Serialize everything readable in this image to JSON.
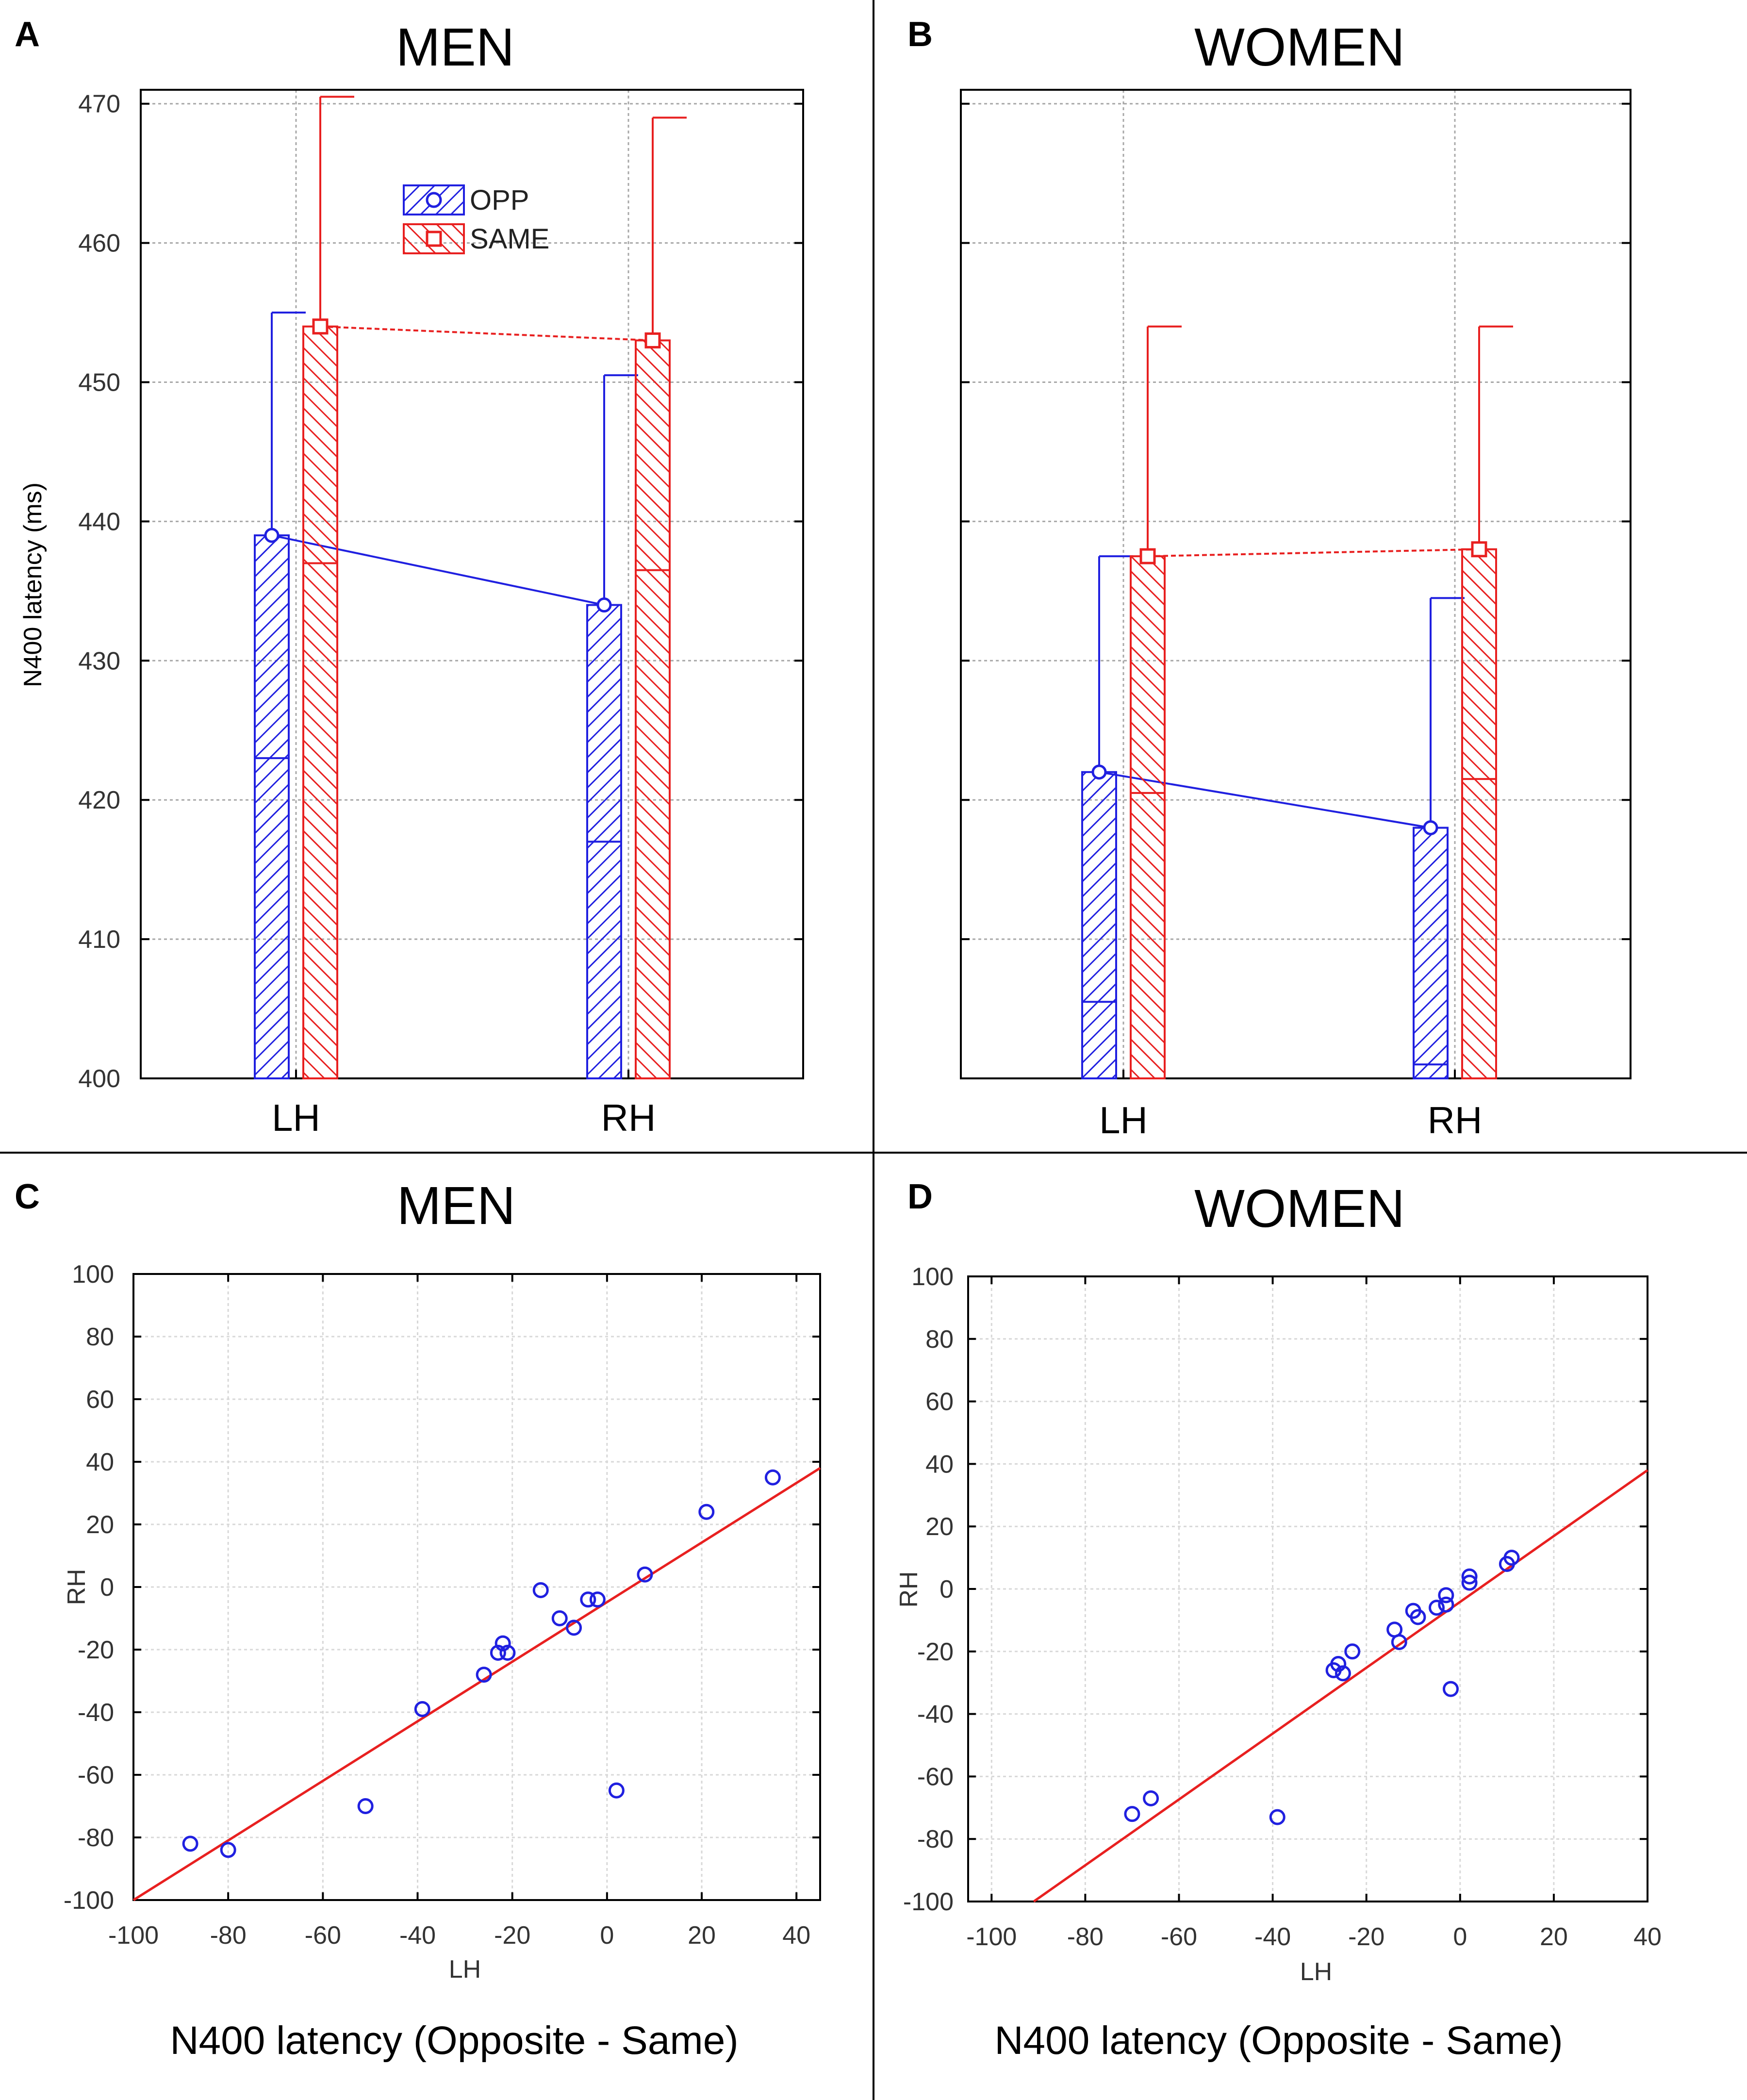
{
  "colors": {
    "opp": "#2020e0",
    "same": "#e82020",
    "fit_line": "#e82020",
    "axis": "#000000",
    "grid": "#a8a8a8",
    "text": "#000000",
    "tick_text": "#333333"
  },
  "chart_data": [
    {
      "panel": "A",
      "type": "bar",
      "title": "MEN",
      "xlabel": "",
      "ylabel": "N400 latency (ms)",
      "ylim": [
        400,
        470
      ],
      "yticks": [
        400,
        410,
        420,
        430,
        440,
        450,
        460,
        470
      ],
      "categories": [
        "LH",
        "RH"
      ],
      "grid": true,
      "legend_position": "top-center",
      "series": [
        {
          "name": "OPP",
          "values": [
            439,
            434
          ],
          "lower": [
            423,
            417
          ],
          "upper": [
            455,
            450.5
          ]
        },
        {
          "name": "SAME",
          "values": [
            454,
            453
          ],
          "lower": [
            437,
            436.5
          ],
          "upper": [
            470.5,
            469
          ]
        }
      ]
    },
    {
      "panel": "B",
      "type": "bar",
      "title": "WOMEN",
      "xlabel": "",
      "ylabel": "",
      "ylim": [
        400,
        470
      ],
      "yticks": [
        400,
        410,
        420,
        430,
        440,
        450,
        460,
        470
      ],
      "categories": [
        "LH",
        "RH"
      ],
      "grid": true,
      "series": [
        {
          "name": "OPP",
          "values": [
            422,
            418
          ],
          "lower": [
            405.5,
            401
          ],
          "upper": [
            437.5,
            434.5
          ]
        },
        {
          "name": "SAME",
          "values": [
            437.5,
            438
          ],
          "lower": [
            420.5,
            421.5
          ],
          "upper": [
            454,
            454
          ]
        }
      ]
    },
    {
      "panel": "C",
      "type": "scatter",
      "title": "MEN",
      "xlabel": "LH",
      "ylabel": "RH",
      "caption": "N400 latency (Opposite - Same)",
      "xlim": [
        -100,
        45
      ],
      "ylim": [
        -100,
        100
      ],
      "xticks": [
        -100,
        -80,
        -60,
        -40,
        -20,
        0,
        20,
        40
      ],
      "yticks": [
        -100,
        -80,
        -60,
        -40,
        -20,
        0,
        20,
        40,
        60,
        80,
        100
      ],
      "grid": true,
      "fit": {
        "x1": -100,
        "y1": -100,
        "x2": 45,
        "y2": 38
      },
      "points": [
        [
          -88,
          -82
        ],
        [
          -80,
          -84
        ],
        [
          -51,
          -70
        ],
        [
          -39,
          -39
        ],
        [
          -26,
          -28
        ],
        [
          -23,
          -21
        ],
        [
          -22,
          -18
        ],
        [
          -21,
          -21
        ],
        [
          -14,
          -1
        ],
        [
          -10,
          -10
        ],
        [
          -7,
          -13
        ],
        [
          -4,
          -4
        ],
        [
          -2,
          -4
        ],
        [
          2,
          -65
        ],
        [
          8,
          4
        ],
        [
          21,
          24
        ],
        [
          35,
          35
        ]
      ]
    },
    {
      "panel": "D",
      "type": "scatter",
      "title": "WOMEN",
      "xlabel": "LH",
      "ylabel": "RH",
      "caption": "N400 latency (Opposite - Same)",
      "xlim": [
        -105,
        40
      ],
      "ylim": [
        -100,
        100
      ],
      "xticks": [
        -100,
        -80,
        -60,
        -40,
        -20,
        0,
        20,
        40
      ],
      "yticks": [
        -100,
        -80,
        -60,
        -40,
        -20,
        0,
        20,
        40,
        60,
        80,
        100
      ],
      "grid": true,
      "fit": {
        "x1": -91,
        "y1": -100,
        "x2": 40,
        "y2": 38
      },
      "points": [
        [
          -70,
          -72
        ],
        [
          -66,
          -67
        ],
        [
          -39,
          -73
        ],
        [
          -27,
          -26
        ],
        [
          -26,
          -24
        ],
        [
          -25,
          -27
        ],
        [
          -23,
          -20
        ],
        [
          -14,
          -13
        ],
        [
          -13,
          -17
        ],
        [
          -10,
          -7
        ],
        [
          -9,
          -9
        ],
        [
          -5,
          -6
        ],
        [
          -3,
          -5
        ],
        [
          -3,
          -2
        ],
        [
          -2,
          -32
        ],
        [
          2,
          2
        ],
        [
          2,
          4
        ],
        [
          10,
          8
        ],
        [
          11,
          10
        ]
      ]
    }
  ]
}
